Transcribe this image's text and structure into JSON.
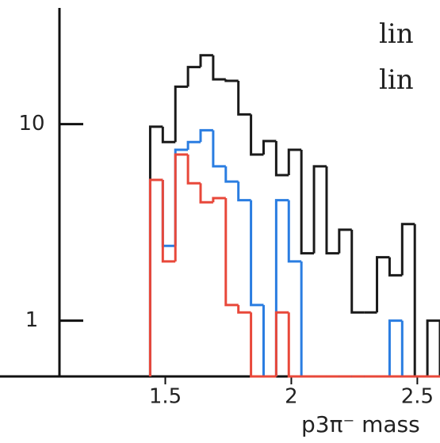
{
  "chart_data": {
    "type": "histogram",
    "x_label": "p3π⁻ mass",
    "log_y": true,
    "bins": [
      1.44,
      1.49,
      1.54,
      1.59,
      1.64,
      1.69,
      1.74,
      1.79,
      1.84,
      1.89,
      1.94,
      1.99,
      2.04,
      2.09,
      2.14,
      2.19,
      2.24,
      2.29,
      2.34,
      2.39,
      2.44,
      2.49,
      2.54,
      2.59
    ],
    "series": [
      {
        "color": "#1a1a1a",
        "values": [
          9.7,
          8.1,
          15.5,
          19.5,
          22.4,
          16.9,
          16.6,
          11.2,
          7.0,
          8.2,
          5.5,
          7.4,
          2.2,
          6.1,
          2.2,
          2.9,
          1.1,
          1.1,
          2.1,
          1.7,
          3.1,
          0,
          1.0
        ]
      },
      {
        "name": "lin",
        "color": "#2a7de1",
        "values": [
          5.2,
          2.4,
          7.4,
          8.1,
          9.3,
          6.1,
          5.1,
          4.1,
          1.2,
          0,
          4.1,
          2.0,
          0,
          0,
          0,
          0,
          0,
          0,
          0,
          1.0,
          0,
          0,
          0
        ]
      },
      {
        "name": "lin",
        "color": "#e8483a",
        "values": [
          5.2,
          2.0,
          7.0,
          5.0,
          4.0,
          4.2,
          1.2,
          1.1,
          0,
          0,
          1.1,
          0,
          0,
          0,
          0,
          0,
          0,
          0,
          0,
          0,
          0,
          0,
          0
        ]
      }
    ],
    "xlim": [
      1.08,
      2.59
    ],
    "xticks": [
      1.5,
      2,
      2.5
    ],
    "ylim": [
      0.52,
      39
    ],
    "yticks": [
      1,
      10
    ]
  }
}
